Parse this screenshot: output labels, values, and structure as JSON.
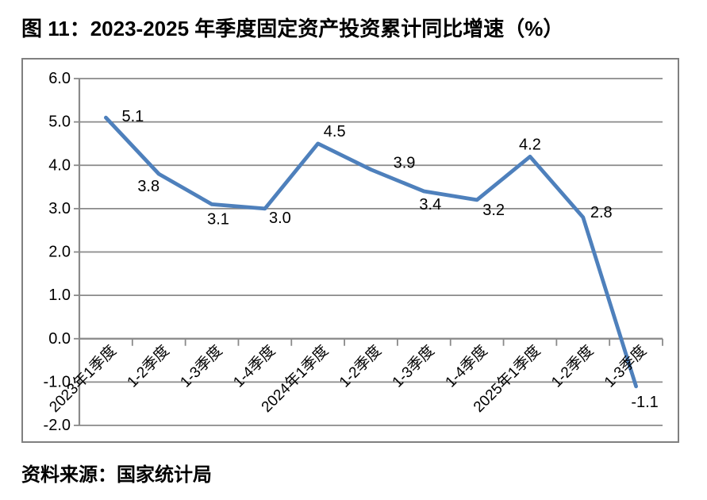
{
  "figure": {
    "title": "图 11：2023-2025 年季度固定资产投资累计同比增速（%）",
    "source": "资料来源：国家统计局"
  },
  "colors": {
    "line": "#4E80BC",
    "grid": "#8A8A8A",
    "axis": "#8A8A8A",
    "frame_border": "#808080",
    "text": "#000000"
  },
  "chart_data": {
    "type": "line",
    "title": "图 11：2023-2025 年季度固定资产投资累计同比增速（%）",
    "categories": [
      "2023年1季度",
      "1-2季度",
      "1-3季度",
      "1-4季度",
      "2024年1季度",
      "1-2季度",
      "1-3季度",
      "1-4季度",
      "2025年1季度",
      "1-2季度",
      "1-3季度"
    ],
    "values": [
      5.1,
      3.8,
      3.1,
      3.0,
      4.5,
      3.9,
      3.4,
      3.2,
      4.2,
      2.8,
      -1.1
    ],
    "data_labels": [
      "5.1",
      "3.8",
      "3.1",
      "3.0",
      "4.5",
      "3.9",
      "3.4",
      "3.2",
      "4.2",
      "2.8",
      "-1.1"
    ],
    "xlabel": "",
    "ylabel": "",
    "ylim": [
      -2.0,
      6.0
    ],
    "ytick_step": 1.0,
    "ytick_labels": [
      "6.0",
      "5.0",
      "4.0",
      "3.0",
      "2.0",
      "1.0",
      "0.0",
      "-1.0",
      "-2.0"
    ],
    "grid": true,
    "legend": "none",
    "show_markers": false
  }
}
